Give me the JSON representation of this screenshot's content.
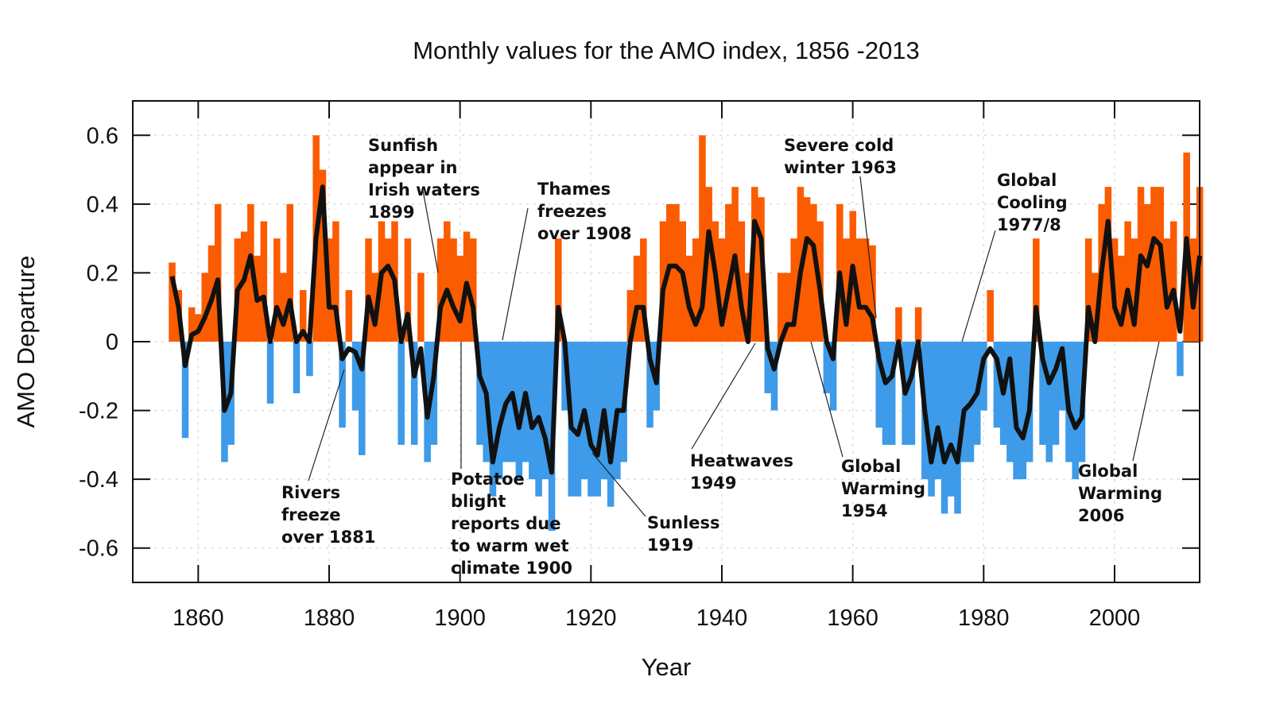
{
  "chart_data": {
    "type": "bar",
    "title": "Monthly values for the AMO index, 1856 -2013",
    "x_label": "Year",
    "y_label": "AMO Departure",
    "xlim": [
      1850,
      2013
    ],
    "ylim": [
      -0.7,
      0.7
    ],
    "xticks": [
      1860,
      1880,
      1900,
      1920,
      1940,
      1960,
      1980,
      2000
    ],
    "yticks": [
      0.6,
      0.4,
      0.2,
      0,
      -0.2,
      -0.4,
      -0.6
    ],
    "grid": true,
    "x": [
      1856,
      1857,
      1858,
      1859,
      1860,
      1861,
      1862,
      1863,
      1864,
      1865,
      1866,
      1867,
      1868,
      1869,
      1870,
      1871,
      1872,
      1873,
      1874,
      1875,
      1876,
      1877,
      1878,
      1879,
      1880,
      1881,
      1882,
      1883,
      1884,
      1885,
      1886,
      1887,
      1888,
      1889,
      1890,
      1891,
      1892,
      1893,
      1894,
      1895,
      1896,
      1897,
      1898,
      1899,
      1900,
      1901,
      1902,
      1903,
      1904,
      1905,
      1906,
      1907,
      1908,
      1909,
      1910,
      1911,
      1912,
      1913,
      1914,
      1915,
      1916,
      1917,
      1918,
      1919,
      1920,
      1921,
      1922,
      1923,
      1924,
      1925,
      1926,
      1927,
      1928,
      1929,
      1930,
      1931,
      1932,
      1933,
      1934,
      1935,
      1936,
      1937,
      1938,
      1939,
      1940,
      1941,
      1942,
      1943,
      1944,
      1945,
      1946,
      1947,
      1948,
      1949,
      1950,
      1951,
      1952,
      1953,
      1954,
      1955,
      1956,
      1957,
      1958,
      1959,
      1960,
      1961,
      1962,
      1963,
      1964,
      1965,
      1966,
      1967,
      1968,
      1969,
      1970,
      1971,
      1972,
      1973,
      1974,
      1975,
      1976,
      1977,
      1978,
      1979,
      1980,
      1981,
      1982,
      1983,
      1984,
      1985,
      1986,
      1987,
      1988,
      1989,
      1990,
      1991,
      1992,
      1993,
      1994,
      1995,
      1996,
      1997,
      1998,
      1999,
      2000,
      2001,
      2002,
      2003,
      2004,
      2005,
      2006,
      2007,
      2008,
      2009,
      2010,
      2011,
      2012,
      2013
    ],
    "bars": {
      "positive_color": "#fb5c00",
      "negative_color": "#3d9be9",
      "values": [
        0.23,
        0.15,
        -0.28,
        0.1,
        0.08,
        0.2,
        0.28,
        0.4,
        -0.35,
        -0.3,
        0.3,
        0.32,
        0.4,
        0.25,
        0.35,
        -0.18,
        0.3,
        0.2,
        0.4,
        -0.15,
        0.15,
        -0.1,
        0.6,
        0.5,
        0.3,
        0.35,
        -0.25,
        0.15,
        -0.2,
        -0.33,
        0.3,
        0.2,
        0.35,
        0.3,
        0.35,
        -0.3,
        0.3,
        -0.3,
        0.2,
        -0.35,
        -0.3,
        0.3,
        0.35,
        0.3,
        0.25,
        0.32,
        0.3,
        -0.3,
        -0.35,
        -0.45,
        -0.4,
        -0.35,
        -0.35,
        -0.4,
        -0.35,
        -0.4,
        -0.45,
        -0.4,
        -0.55,
        0.3,
        -0.2,
        -0.45,
        -0.45,
        -0.4,
        -0.45,
        -0.45,
        -0.4,
        -0.48,
        -0.4,
        -0.35,
        0.15,
        0.25,
        0.3,
        -0.25,
        -0.2,
        0.35,
        0.4,
        0.4,
        0.35,
        0.25,
        0.3,
        0.6,
        0.45,
        0.35,
        0.3,
        0.4,
        0.45,
        0.35,
        0.2,
        0.45,
        0.42,
        -0.15,
        -0.2,
        0.2,
        0.2,
        0.3,
        0.45,
        0.42,
        0.4,
        0.35,
        -0.15,
        -0.2,
        0.4,
        0.3,
        0.38,
        0.3,
        0.3,
        0.28,
        -0.25,
        -0.3,
        -0.3,
        0.1,
        -0.3,
        -0.3,
        0.1,
        -0.4,
        -0.45,
        -0.4,
        -0.5,
        -0.45,
        -0.5,
        -0.35,
        -0.35,
        -0.3,
        -0.2,
        0.15,
        -0.25,
        -0.3,
        -0.35,
        -0.4,
        -0.4,
        -0.35,
        0.3,
        -0.3,
        -0.35,
        -0.3,
        -0.2,
        -0.35,
        -0.4,
        -0.35,
        0.3,
        0.2,
        0.4,
        0.45,
        0.3,
        0.25,
        0.35,
        0.3,
        0.45,
        0.4,
        0.45,
        0.45,
        0.3,
        0.35,
        -0.1,
        0.55,
        0.3,
        0.45
      ]
    },
    "smooth": {
      "color": "#111111",
      "values": [
        0.19,
        0.1,
        -0.07,
        0.02,
        0.03,
        0.07,
        0.12,
        0.18,
        -0.2,
        -0.15,
        0.15,
        0.18,
        0.25,
        0.12,
        0.13,
        0.0,
        0.1,
        0.05,
        0.12,
        0.0,
        0.03,
        0.0,
        0.3,
        0.45,
        0.1,
        0.1,
        -0.05,
        -0.02,
        -0.03,
        -0.08,
        0.13,
        0.05,
        0.2,
        0.22,
        0.18,
        0.0,
        0.08,
        -0.1,
        -0.02,
        -0.22,
        -0.1,
        0.1,
        0.15,
        0.1,
        0.06,
        0.17,
        0.1,
        -0.1,
        -0.15,
        -0.35,
        -0.25,
        -0.18,
        -0.15,
        -0.25,
        -0.15,
        -0.25,
        -0.22,
        -0.28,
        -0.38,
        0.1,
        0.0,
        -0.25,
        -0.27,
        -0.2,
        -0.3,
        -0.33,
        -0.2,
        -0.35,
        -0.2,
        -0.2,
        0.0,
        0.1,
        0.1,
        -0.05,
        -0.12,
        0.15,
        0.22,
        0.22,
        0.2,
        0.1,
        0.05,
        0.1,
        0.32,
        0.2,
        0.05,
        0.15,
        0.25,
        0.1,
        0.0,
        0.35,
        0.3,
        -0.02,
        -0.08,
        0.0,
        0.05,
        0.05,
        0.2,
        0.3,
        0.28,
        0.15,
        0.0,
        -0.05,
        0.2,
        0.05,
        0.22,
        0.1,
        0.1,
        0.07,
        -0.05,
        -0.12,
        -0.1,
        0.0,
        -0.15,
        -0.1,
        0.0,
        -0.2,
        -0.35,
        -0.25,
        -0.35,
        -0.3,
        -0.35,
        -0.2,
        -0.18,
        -0.15,
        -0.05,
        -0.02,
        -0.05,
        -0.15,
        -0.05,
        -0.25,
        -0.28,
        -0.2,
        0.1,
        -0.05,
        -0.12,
        -0.08,
        -0.02,
        -0.2,
        -0.25,
        -0.22,
        0.1,
        0.0,
        0.2,
        0.35,
        0.1,
        0.05,
        0.15,
        0.05,
        0.25,
        0.22,
        0.3,
        0.28,
        0.1,
        0.15,
        0.03,
        0.3,
        0.1,
        0.25
      ]
    },
    "annotations": [
      [
        "Sunfish",
        "appear in",
        "Irish waters",
        "1899"
      ],
      [
        "Thames",
        "freezes",
        "over 1908"
      ],
      [
        "Severe cold",
        "winter 1963"
      ],
      [
        "Global",
        "Cooling",
        "1977/8"
      ],
      [
        "Rivers",
        "freeze",
        "over 1881"
      ],
      [
        "Potatoe",
        "blight",
        "reports due",
        "to warm wet",
        "climate 1900"
      ],
      [
        "Sunless",
        "1919"
      ],
      [
        "Heatwaves",
        " 1949"
      ],
      [
        "Global",
        "Warming",
        "1954"
      ],
      [
        "Global",
        "Warming",
        "2006"
      ]
    ]
  }
}
